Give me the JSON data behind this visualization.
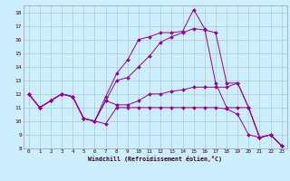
{
  "xlabel": "Windchill (Refroidissement éolien,°C)",
  "bg_color": "#cceeff",
  "grid_color": "#aacccc",
  "line_color": "#990099",
  "xlim": [
    -0.5,
    23.5
  ],
  "ylim": [
    8,
    18.5
  ],
  "yticks": [
    8,
    9,
    10,
    11,
    12,
    13,
    14,
    15,
    16,
    17,
    18
  ],
  "xticks": [
    0,
    1,
    2,
    3,
    4,
    5,
    6,
    7,
    8,
    9,
    10,
    11,
    12,
    13,
    14,
    15,
    16,
    17,
    18,
    19,
    20,
    21,
    22,
    23
  ],
  "series": [
    {
      "x": [
        0,
        1,
        2,
        3,
        4,
        5,
        6,
        7,
        8,
        9,
        10,
        11,
        12,
        13,
        14,
        15,
        16,
        17,
        18,
        19,
        20,
        21,
        22,
        23
      ],
      "y": [
        12,
        11,
        11.5,
        12,
        11.8,
        10.2,
        10.0,
        9.8,
        11.0,
        11.0,
        11.0,
        11.0,
        11.0,
        11.0,
        11.0,
        11.0,
        11.0,
        11.0,
        10.9,
        10.5,
        9.0,
        8.8,
        9.0,
        8.2
      ]
    },
    {
      "x": [
        0,
        1,
        2,
        3,
        4,
        5,
        6,
        7,
        8,
        9,
        10,
        11,
        12,
        13,
        14,
        15,
        16,
        17,
        18,
        19,
        20,
        21,
        22,
        23
      ],
      "y": [
        12,
        11,
        11.5,
        12,
        11.8,
        10.2,
        10.0,
        11.5,
        11.2,
        11.2,
        11.5,
        12.0,
        12.0,
        12.2,
        12.3,
        12.5,
        12.5,
        12.5,
        12.5,
        12.8,
        11.0,
        8.8,
        9.0,
        8.2
      ]
    },
    {
      "x": [
        0,
        1,
        2,
        3,
        4,
        5,
        6,
        7,
        8,
        9,
        10,
        11,
        12,
        13,
        14,
        15,
        16,
        17,
        18,
        19,
        20,
        21,
        22,
        23
      ],
      "y": [
        12,
        11,
        11.5,
        12,
        11.8,
        10.2,
        10.0,
        11.5,
        13.0,
        13.2,
        14.0,
        14.8,
        15.8,
        16.2,
        16.5,
        16.8,
        16.7,
        16.5,
        12.8,
        12.8,
        11.0,
        8.8,
        9.0,
        8.2
      ]
    },
    {
      "x": [
        0,
        1,
        2,
        3,
        4,
        5,
        6,
        7,
        8,
        9,
        10,
        11,
        12,
        13,
        14,
        15,
        16,
        17,
        18,
        19,
        20,
        21,
        22,
        23
      ],
      "y": [
        12,
        11,
        11.5,
        12,
        11.8,
        10.2,
        10.0,
        11.8,
        13.5,
        14.5,
        16.0,
        16.2,
        16.5,
        16.5,
        16.6,
        18.2,
        16.8,
        12.8,
        11.0,
        11.0,
        11.0,
        8.8,
        9.0,
        8.2
      ]
    }
  ]
}
